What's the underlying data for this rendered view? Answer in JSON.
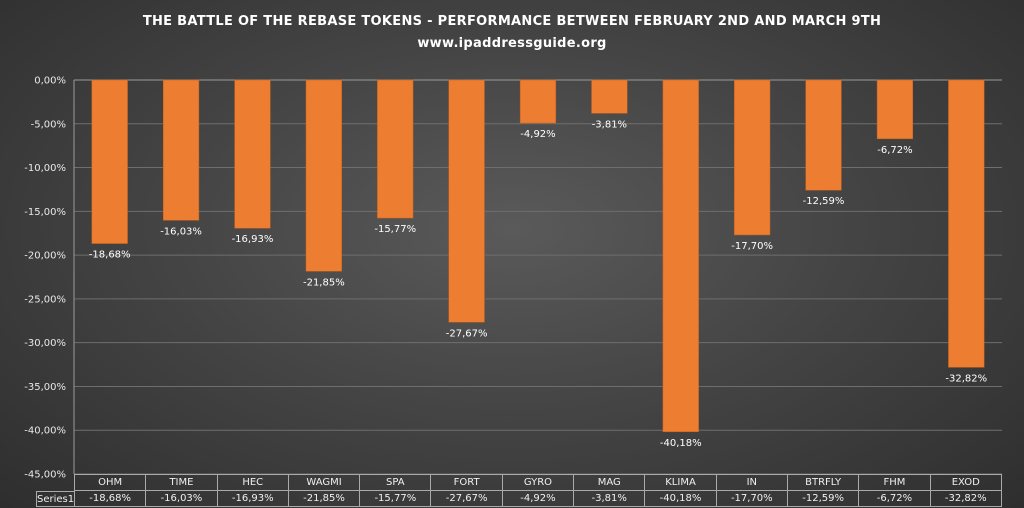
{
  "chart_data": {
    "type": "bar",
    "title": "THE BATTLE OF THE REBASE TOKENS  - PERFORMANCE BETWEEN FEBRUARY 2ND AND MARCH 9TH",
    "subtitle": "www.ipaddressguide.org",
    "categories": [
      "OHM",
      "TIME",
      "HEC",
      "WAGMI",
      "SPA",
      "FORT",
      "GYRO",
      "MAG",
      "KLIMA",
      "IN",
      "BTRFLY",
      "FHM",
      "EXOD"
    ],
    "series": [
      {
        "name": "Series1",
        "values": [
          -18.68,
          -16.03,
          -16.93,
          -21.85,
          -15.77,
          -27.67,
          -4.92,
          -3.81,
          -40.18,
          -17.7,
          -12.59,
          -6.72,
          -32.82
        ],
        "labels": [
          "-18,68%",
          "-16,03%",
          "-16,93%",
          "-21,85%",
          "-15,77%",
          "-27,67%",
          "-4,92%",
          "-3,81%",
          "-40,18%",
          "-17,70%",
          "-12,59%",
          "-6,72%",
          "-32,82%"
        ]
      }
    ],
    "yticks": [
      "0,00%",
      "-5,00%",
      "-10,00%",
      "-15,00%",
      "-20,00%",
      "-25,00%",
      "-30,00%",
      "-35,00%",
      "-40,00%",
      "-45,00%"
    ],
    "ylim": [
      -45,
      0
    ],
    "grid": true,
    "data_table": true,
    "bar_color": "#ed7d31"
  }
}
